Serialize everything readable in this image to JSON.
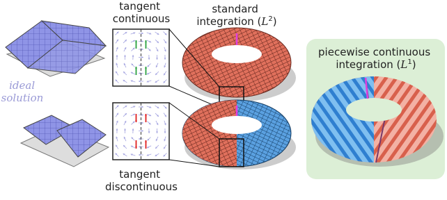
{
  "ideal_solution": [
    "ideal",
    "solution"
  ],
  "tangent_continuous": [
    "tangent",
    "continuous"
  ],
  "tangent_discontinuous": [
    "tangent",
    "discontinuous"
  ],
  "standard": {
    "line1": "standard",
    "prefix": "integration (",
    "symbol": "L",
    "superscript": "2",
    "suffix": ")"
  },
  "piecewise": {
    "line1": "piecewise continuous",
    "prefix": "integration (",
    "symbol": "L",
    "superscript": "1",
    "suffix": ")"
  }
}
